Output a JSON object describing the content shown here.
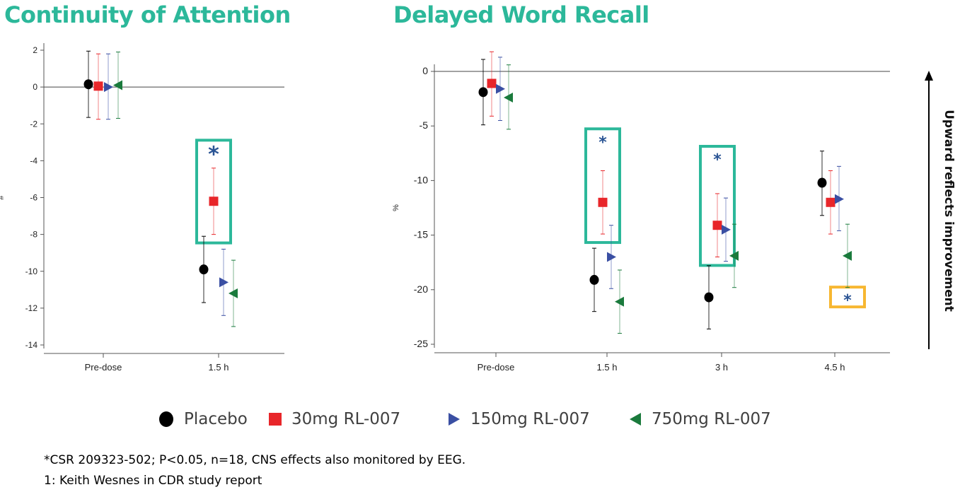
{
  "colors": {
    "placebo": "#000000",
    "rl30": "#e8262a",
    "rl150": "#3a4fa3",
    "rl750": "#1a7a3c",
    "highlight_teal": "#2cb89a",
    "highlight_yellow": "#f7b731",
    "asterisk": "#2a5494"
  },
  "chart_data": [
    {
      "type": "scatter",
      "title": "Continuity of Attention",
      "xlabel": "",
      "ylabel": "#",
      "categories": [
        "Pre-dose",
        "1.5 h"
      ],
      "ylim": [
        -14,
        2
      ],
      "yticks": [
        2,
        0,
        -2,
        -4,
        -6,
        -8,
        -10,
        -12,
        -14
      ],
      "ytick_labels": [
        "2",
        "0",
        "-2",
        "-4",
        "-6",
        "-8",
        "-10",
        "-12",
        "-14"
      ],
      "reference_line": 0,
      "series": [
        {
          "name": "Placebo",
          "key": "placebo",
          "values": [
            0.15,
            -9.9
          ],
          "lower": [
            -1.65,
            -11.7
          ],
          "upper": [
            1.95,
            -8.1
          ]
        },
        {
          "name": "30mg RL-007",
          "key": "rl30",
          "values": [
            0.05,
            -6.2
          ],
          "lower": [
            -1.75,
            -8.0
          ],
          "upper": [
            1.8,
            -4.4
          ]
        },
        {
          "name": "150mg RL-007",
          "key": "rl150",
          "values": [
            0.0,
            -10.6
          ],
          "lower": [
            -1.75,
            -12.4
          ],
          "upper": [
            1.8,
            -8.8
          ]
        },
        {
          "name": "750mg RL-007",
          "key": "rl750",
          "values": [
            0.1,
            -11.2
          ],
          "lower": [
            -1.7,
            -13.0
          ],
          "upper": [
            1.9,
            -9.4
          ]
        }
      ],
      "highlights": [
        {
          "category": "1.5 h",
          "series": "30mg RL-007",
          "color": "teal",
          "asterisk": "*",
          "asterisk_y": -3.5
        }
      ]
    },
    {
      "type": "scatter",
      "title": "Delayed Word Recall",
      "xlabel": "",
      "ylabel": "%",
      "categories": [
        "Pre-dose",
        "1.5 h",
        "3 h",
        "4.5 h"
      ],
      "ylim": [
        -25,
        0
      ],
      "yticks": [
        0,
        -5,
        -10,
        -15,
        -20,
        -25
      ],
      "ytick_labels": [
        "0",
        "-5",
        "-10",
        "-15",
        "-20",
        "-25"
      ],
      "reference_line": 0,
      "series": [
        {
          "name": "Placebo",
          "key": "placebo",
          "values": [
            -1.9,
            -19.1,
            -20.7,
            -10.2
          ],
          "lower": [
            -4.9,
            -22.0,
            -23.6,
            -13.2
          ],
          "upper": [
            1.1,
            -16.2,
            -17.8,
            -7.3
          ]
        },
        {
          "name": "30mg RL-007",
          "key": "rl30",
          "values": [
            -1.1,
            -12.0,
            -14.1,
            -12.0
          ],
          "lower": [
            -4.1,
            -14.9,
            -17.0,
            -14.9
          ],
          "upper": [
            1.8,
            -9.1,
            -11.2,
            -9.1
          ]
        },
        {
          "name": "150mg RL-007",
          "key": "rl150",
          "values": [
            -1.6,
            -17.0,
            -14.5,
            -11.7
          ],
          "lower": [
            -4.5,
            -19.9,
            -17.4,
            -14.6
          ],
          "upper": [
            1.3,
            -14.1,
            -11.6,
            -8.7
          ]
        },
        {
          "name": "750mg RL-007",
          "key": "rl750",
          "values": [
            -2.4,
            -21.1,
            -16.9,
            -16.9
          ],
          "lower": [
            -5.3,
            -24.0,
            -19.8,
            -19.8
          ],
          "upper": [
            0.6,
            -18.2,
            -14.0,
            -14.0
          ]
        }
      ],
      "highlights": [
        {
          "category": "1.5 h",
          "series": "30mg RL-007",
          "color": "teal",
          "asterisk": "*",
          "asterisk_y": -6.3
        },
        {
          "category": "3 h",
          "series": "30mg RL-007",
          "color": "teal",
          "asterisk": "*",
          "asterisk_y": -7.9
        },
        {
          "category": "4.5 h",
          "series": "750mg RL-007",
          "color": "yellow",
          "asterisk": "*",
          "asterisk_y": -20.8
        }
      ]
    }
  ],
  "legend": [
    {
      "key": "placebo",
      "label": "Placebo",
      "marker": "circle"
    },
    {
      "key": "rl30",
      "label": "30mg RL-007",
      "marker": "square"
    },
    {
      "key": "rl150",
      "label": "150mg RL-007",
      "marker": "triangle-right"
    },
    {
      "key": "rl750",
      "label": "750mg RL-007",
      "marker": "triangle-left"
    }
  ],
  "side_label": "Upward reflects improvement",
  "footnotes": [
    "*CSR 209323-502; P<0.05, n=18, CNS effects also monitored by EEG.",
    "1: Keith Wesnes in CDR study report"
  ]
}
